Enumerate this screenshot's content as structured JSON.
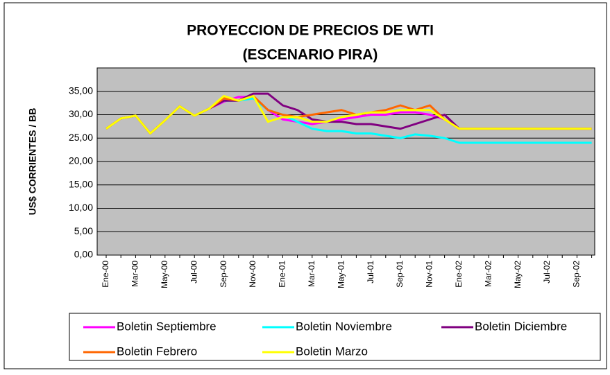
{
  "chart_data": {
    "type": "line",
    "title": "PROYECCION DE PRECIOS DE WTI",
    "subtitle": "(ESCENARIO PIRA)",
    "y_label": "US$ CORRIENTES / BB",
    "categories": [
      "Ene-00",
      null,
      "Mar-00",
      null,
      "May-00",
      null,
      "Jul-00",
      null,
      "Sep-00",
      null,
      "Nov-00",
      null,
      "Ene-01",
      null,
      "Mar-01",
      null,
      "May-01",
      null,
      "Jul-01",
      null,
      "Sep-01",
      null,
      "Nov-01",
      null,
      "Ene-02",
      null,
      "Mar-02",
      null,
      "May-02",
      null,
      "Jul-02",
      null,
      "Sep-02",
      null
    ],
    "series": [
      {
        "name": "Boletin Septiembre",
        "color": "#ff00ff",
        "values": [
          27,
          29.2,
          29.8,
          26,
          28.8,
          31.8,
          29.8,
          31.3,
          32.8,
          33.8,
          33.8,
          31,
          29,
          28.5,
          28,
          28.5,
          29,
          29.5,
          30,
          30,
          30.5,
          30.5,
          30,
          29,
          27,
          27,
          27,
          27,
          27,
          27,
          27,
          27,
          27,
          27
        ]
      },
      {
        "name": "Boletin Noviembre",
        "color": "#00ffff",
        "values": [
          27,
          29.2,
          29.8,
          26,
          28.8,
          31.8,
          29.8,
          31.3,
          33,
          33,
          33.5,
          31,
          30,
          28.5,
          27,
          26.5,
          26.5,
          26,
          26,
          25.5,
          25,
          25.8,
          25.5,
          25,
          24,
          24,
          24,
          24,
          24,
          24,
          24,
          24,
          24,
          24
        ]
      },
      {
        "name": "Boletin Diciembre",
        "color": "#800080",
        "values": [
          27,
          29.2,
          29.8,
          26,
          28.8,
          31.8,
          29.8,
          31.3,
          33,
          33,
          34.5,
          34.5,
          32,
          31,
          29,
          28.5,
          28.5,
          28,
          28,
          27.5,
          27,
          28,
          29,
          30,
          27,
          27,
          27,
          27,
          27,
          27,
          27,
          27,
          27,
          27
        ]
      },
      {
        "name": "Boletin Febrero",
        "color": "#ff6600",
        "values": [
          27,
          29.2,
          29.8,
          26,
          28.8,
          31.8,
          29.8,
          31.3,
          33.5,
          33,
          34,
          31,
          30,
          29.5,
          30,
          30.5,
          31,
          30,
          30.5,
          31,
          32,
          31,
          32,
          29,
          27,
          27,
          27,
          27,
          27,
          27,
          27,
          27,
          27,
          27
        ]
      },
      {
        "name": "Boletin Marzo",
        "color": "#ffff00",
        "values": [
          27,
          29.2,
          29.8,
          26,
          28.8,
          31.8,
          29.8,
          31.3,
          34,
          33,
          34,
          28.5,
          29.5,
          29.5,
          28.5,
          28.5,
          29.5,
          30,
          30.5,
          30.5,
          31,
          31,
          31,
          29,
          27,
          27,
          27,
          27,
          27,
          27,
          27,
          27,
          27,
          27
        ]
      }
    ],
    "ylim": [
      0,
      40
    ],
    "yticks": [
      {
        "value": 0,
        "label": "0,00"
      },
      {
        "value": 5,
        "label": "5,00"
      },
      {
        "value": 10,
        "label": "10,00"
      },
      {
        "value": 15,
        "label": "15,00"
      },
      {
        "value": 20,
        "label": "20,00"
      },
      {
        "value": 25,
        "label": "25,00"
      },
      {
        "value": 30,
        "label": "30,00"
      },
      {
        "value": 35,
        "label": "35,00"
      }
    ],
    "grid": true
  }
}
